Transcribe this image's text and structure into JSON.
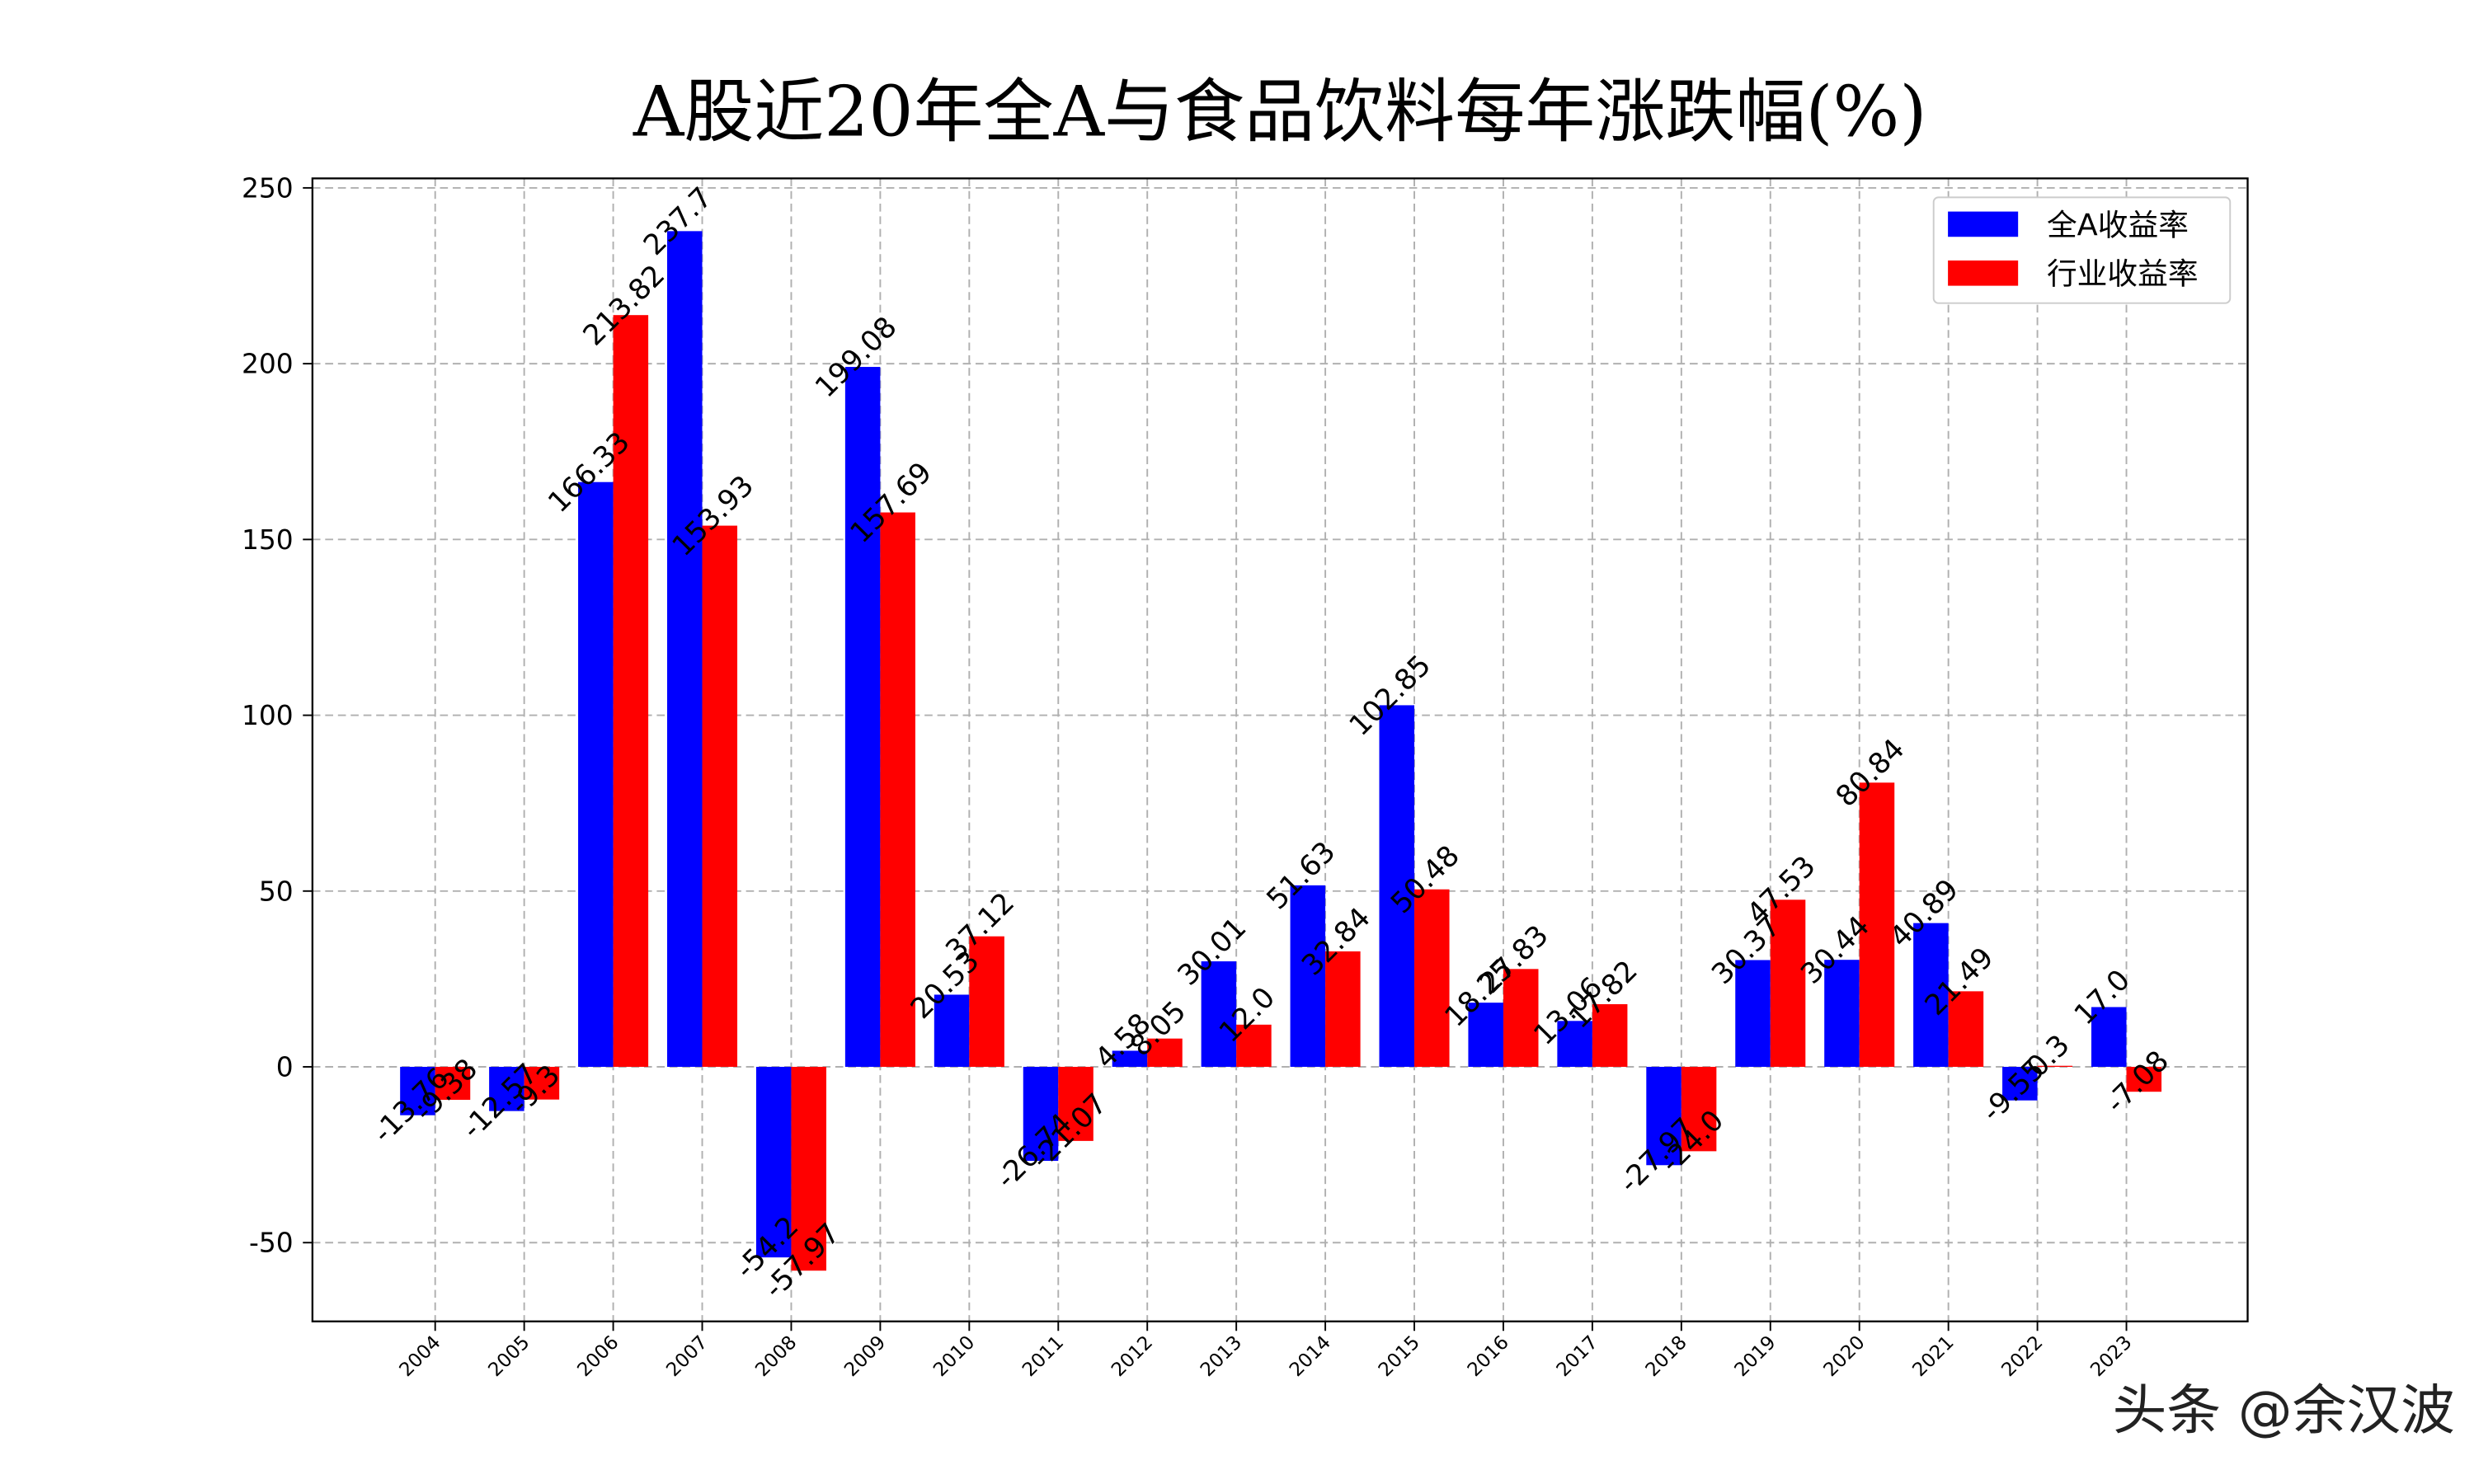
{
  "chart_data": {
    "type": "bar",
    "title": "A股近20年全A与食品饮料每年涨跌幅(%)",
    "categories": [
      "2004",
      "2005",
      "2006",
      "2007",
      "2008",
      "2009",
      "2010",
      "2011",
      "2012",
      "2013",
      "2014",
      "2015",
      "2016",
      "2017",
      "2018",
      "2019",
      "2020",
      "2021",
      "2022",
      "2023"
    ],
    "series": [
      {
        "name": "全A收益率",
        "color": "#0000ff",
        "values": [
          -13.76,
          -12.57,
          166.33,
          237.7,
          -54.2,
          199.08,
          20.53,
          -26.74,
          4.58,
          30.01,
          51.63,
          102.85,
          18.25,
          13.06,
          -27.97,
          30.37,
          30.44,
          40.89,
          -9.55,
          17.0
        ],
        "value_labels": [
          "-13.76",
          "-12.57",
          "166.33",
          "237.7",
          "-54.2",
          "199.08",
          "20.53",
          "-26.74",
          "4.58",
          "30.01",
          "51.63",
          "102.85",
          "18.25",
          "13.06",
          "-27.97",
          "30.37",
          "30.44",
          "40.89",
          "-9.55",
          "17.0"
        ]
      },
      {
        "name": "行业收益率",
        "color": "#ff0000",
        "values": [
          -9.38,
          -9.3,
          213.82,
          153.93,
          -57.97,
          157.69,
          37.12,
          -21.07,
          8.05,
          12.0,
          32.84,
          50.48,
          27.83,
          17.82,
          -24.0,
          47.53,
          80.84,
          21.49,
          0.3,
          -7.08
        ],
        "value_labels": [
          "-9.38",
          "-9.3",
          "213.82",
          "153.93",
          "-57.97",
          "157.69",
          "37.12",
          "-21.07",
          "8.05",
          "12.0",
          "32.84",
          "50.48",
          "27.83",
          "17.82",
          "-24.0",
          "47.53",
          "80.84",
          "21.49",
          "0.3",
          "-7.08"
        ]
      }
    ],
    "ylim": [
      -72.4,
      252.7
    ],
    "yticks": [
      -50,
      0,
      50,
      100,
      150,
      200,
      250
    ],
    "grid": true,
    "legend": "upper right",
    "watermark": "头条 @余汉波"
  }
}
